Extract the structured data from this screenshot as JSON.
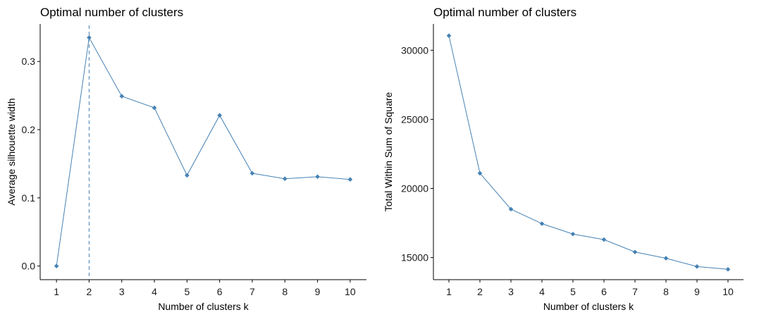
{
  "chart_data": [
    {
      "type": "line",
      "title": "Optimal number of clusters",
      "xlabel": "Number of clusters k",
      "ylabel": "Average silhouette width",
      "x": [
        1,
        2,
        3,
        4,
        5,
        6,
        7,
        8,
        9,
        10
      ],
      "xlim": [
        0.5,
        10.5
      ],
      "ylim": [
        -0.02,
        0.355
      ],
      "yticks": [
        0.0,
        0.1,
        0.2,
        0.3
      ],
      "ytick_labels": [
        "0.0",
        "0.1",
        "0.2",
        "0.3"
      ],
      "series": [
        {
          "values": [
            0.0,
            0.335,
            0.249,
            0.232,
            0.133,
            0.221,
            0.136,
            0.128,
            0.131,
            0.127
          ]
        }
      ],
      "vline_x": 2,
      "grid": false,
      "color": "#4682B4"
    },
    {
      "type": "line",
      "title": "Optimal number of clusters",
      "xlabel": "Number of clusters k",
      "ylabel": "Total Within Sum of Square",
      "x": [
        1,
        2,
        3,
        4,
        5,
        6,
        7,
        8,
        9,
        10
      ],
      "xlim": [
        0.5,
        10.5
      ],
      "ylim": [
        13400,
        31900
      ],
      "yticks": [
        15000,
        20000,
        25000,
        30000
      ],
      "ytick_labels": [
        "15000",
        "20000",
        "25000",
        "30000"
      ],
      "series": [
        {
          "values": [
            31050,
            21100,
            18500,
            17450,
            16700,
            16300,
            15400,
            14950,
            14350,
            14150
          ]
        }
      ],
      "grid": false,
      "color": "#4682B4"
    }
  ]
}
